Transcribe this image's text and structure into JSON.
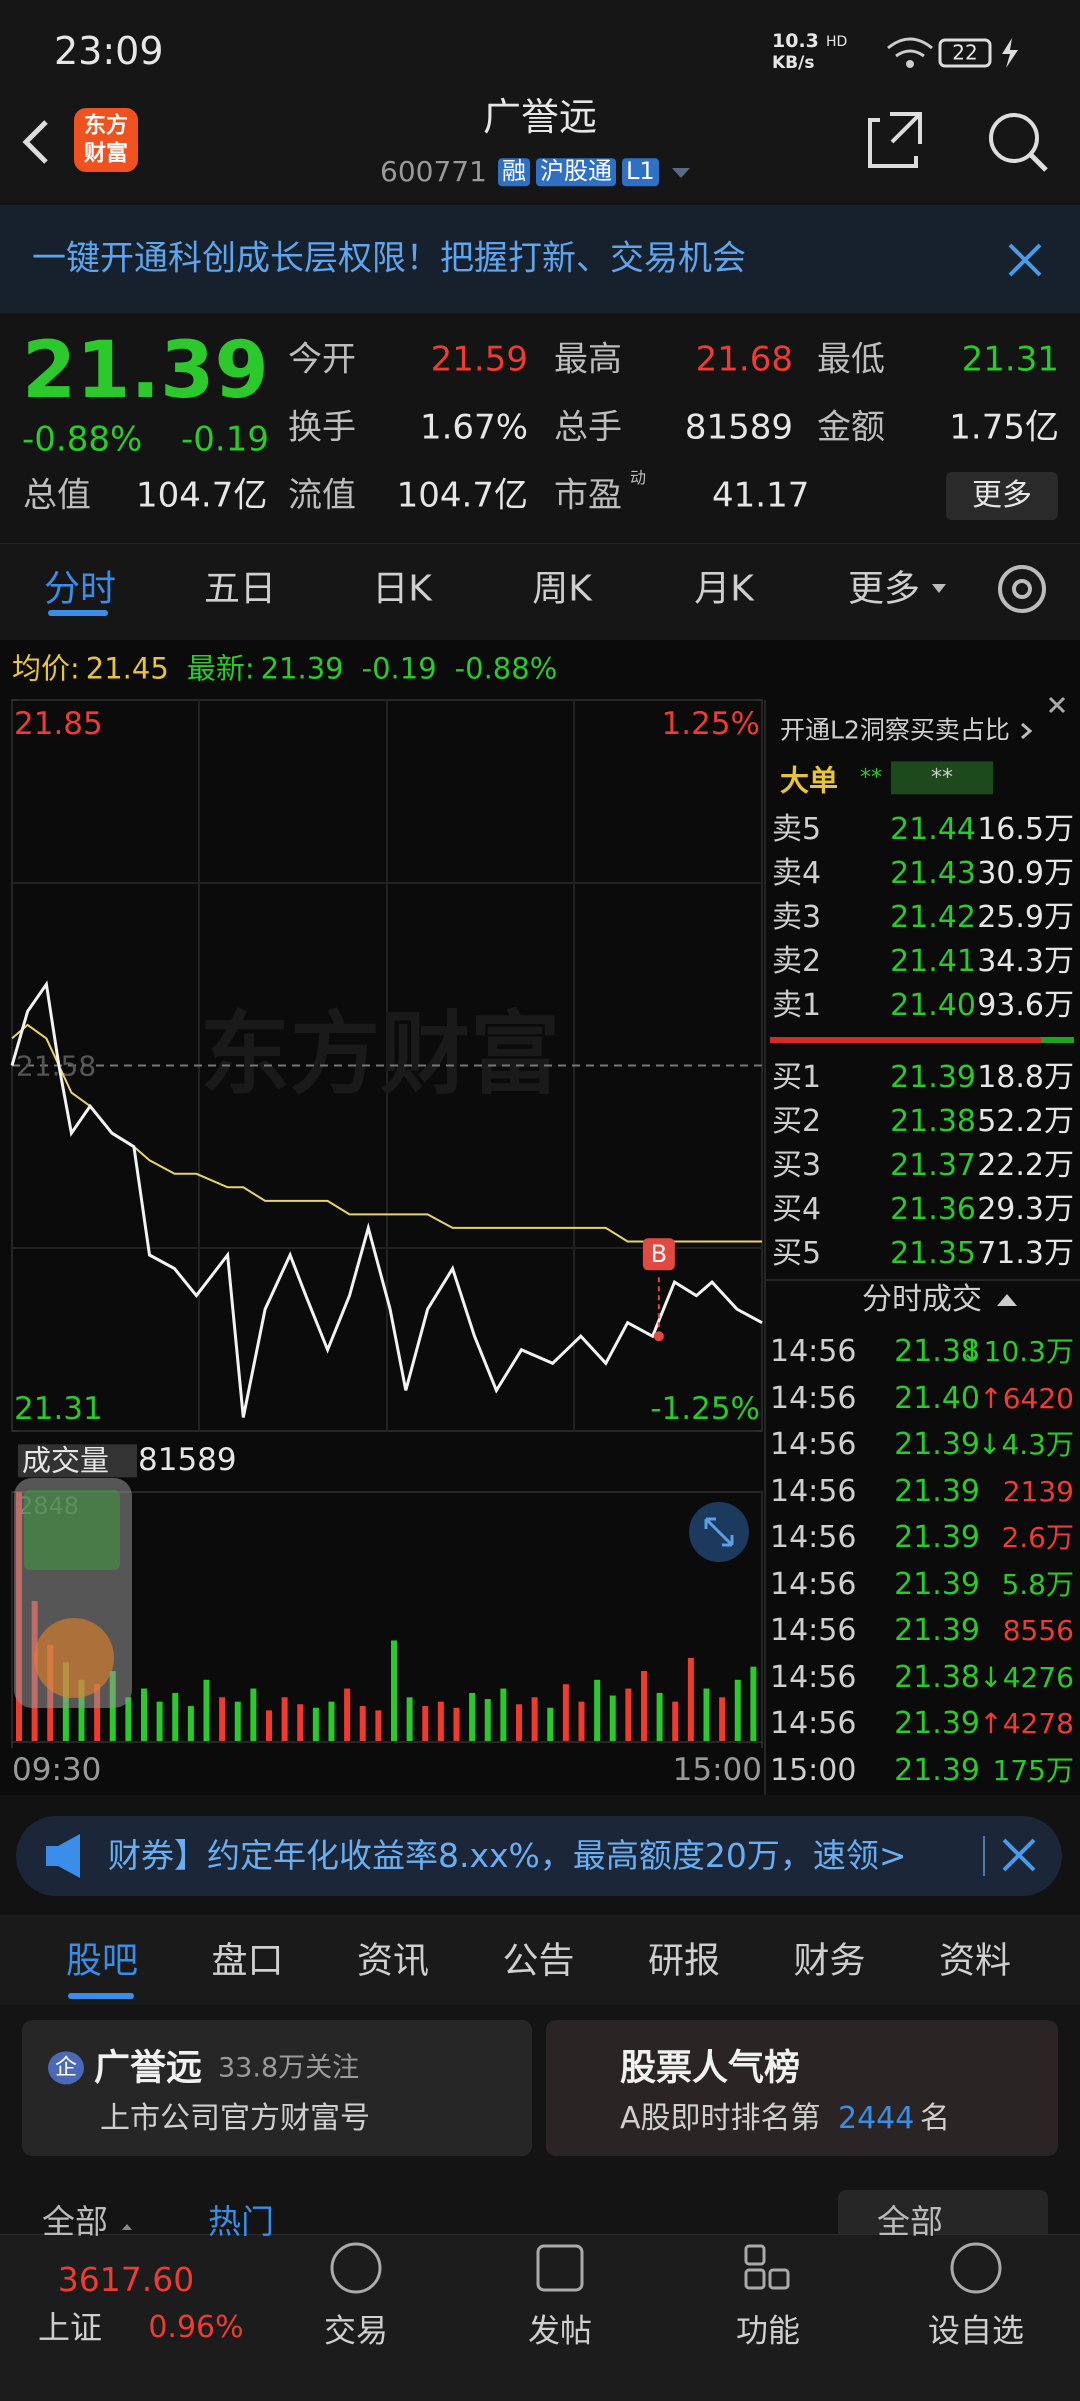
{
  "status": {
    "time": "23:09",
    "speed": "10.3",
    "speed_unit": "KB/s",
    "network": "HD",
    "battery": "22"
  },
  "header": {
    "logo": [
      "东方",
      "财富"
    ],
    "name": "广誉远",
    "code": "600771",
    "tags": [
      "融",
      "沪股通",
      "L1"
    ]
  },
  "banner": {
    "text": "一键开通科创成长层权限！把握打新、交易机会"
  },
  "quote": {
    "price": "21.39",
    "change_pct": "-0.88%",
    "change": "-0.19",
    "stats": [
      {
        "label": "今开",
        "value": "21.59",
        "color": "#ee3b33"
      },
      {
        "label": "最高",
        "value": "21.68",
        "color": "#ee3b33"
      },
      {
        "label": "最低",
        "value": "21.31",
        "color": "#2bc92b"
      },
      {
        "label": "换手",
        "value": "1.67%",
        "color": "#e6e6e6"
      },
      {
        "label": "总手",
        "value": "81589",
        "color": "#e6e6e6"
      },
      {
        "label": "金额",
        "value": "1.75亿",
        "color": "#e6e6e6"
      }
    ],
    "total_label": "总值",
    "total_value": "104.7亿",
    "float_label": "流值",
    "float_value": "104.7亿",
    "pe_label": "市盈",
    "pe_sup": "动",
    "pe_value": "41.17",
    "more": "更多"
  },
  "tabs": [
    "分时",
    "五日",
    "日K",
    "周K",
    "月K",
    "更多"
  ],
  "info": {
    "avg_label": "均价:",
    "avg": "21.45",
    "last_label": "最新:",
    "last": "21.39",
    "change": "-0.19",
    "change_pct": "-0.88%"
  },
  "chart_data": {
    "type": "line",
    "watermark": "东方财富",
    "x": [
      0,
      5,
      11,
      15,
      19,
      25,
      32,
      39,
      44,
      52,
      59,
      69,
      74,
      81,
      89,
      94,
      101,
      108,
      114,
      121,
      126,
      133,
      141,
      148,
      155,
      163,
      173,
      182,
      190,
      197,
      205,
      212,
      219,
      224,
      232,
      240
    ],
    "xlim": [
      0,
      240
    ],
    "xticks": [
      {
        "value": 0,
        "label": "09:30"
      },
      {
        "value": 240,
        "label": "15:00"
      }
    ],
    "ylim": [
      21.31,
      21.85
    ],
    "yticks": [
      21.85,
      21.31
    ],
    "y2lim": [
      -1.25,
      1.25
    ],
    "y2ticks": [
      {
        "value": 1.25,
        "label": "1.25%"
      },
      {
        "value": -1.25,
        "label": "-1.25%"
      }
    ],
    "ref_line": {
      "value": 21.58,
      "label": "21.58"
    },
    "series": [
      {
        "name": "最新",
        "color": "#f2f2f2",
        "values": [
          21.58,
          21.62,
          21.64,
          21.58,
          21.53,
          21.55,
          21.53,
          21.52,
          21.44,
          21.43,
          21.41,
          21.44,
          21.32,
          21.4,
          21.44,
          21.41,
          21.37,
          21.41,
          21.46,
          21.4,
          21.34,
          21.4,
          21.43,
          21.38,
          21.34,
          21.37,
          21.36,
          21.38,
          21.36,
          21.39,
          21.38,
          21.42,
          21.41,
          21.42,
          21.4,
          21.39
        ]
      },
      {
        "name": "均价",
        "color": "#e8d36a",
        "values": [
          21.6,
          21.61,
          21.6,
          21.58,
          21.56,
          21.55,
          21.53,
          21.52,
          21.51,
          21.5,
          21.5,
          21.49,
          21.49,
          21.48,
          21.48,
          21.48,
          21.48,
          21.47,
          21.47,
          21.47,
          21.47,
          21.47,
          21.46,
          21.46,
          21.46,
          21.46,
          21.46,
          21.46,
          21.46,
          21.45,
          21.45,
          21.45,
          21.45,
          21.45,
          21.45,
          21.45
        ]
      }
    ],
    "marker": {
      "label": "B",
      "x": 207,
      "value": 21.38,
      "color": "#e04a40"
    },
    "volume": {
      "title": "成交量",
      "total": "81589",
      "up_color": "#f03a2e",
      "down_color": "#2bc92b",
      "ylim": [
        0,
        2848
      ],
      "yticks": [
        2848
      ],
      "x": [
        0,
        5,
        10,
        15,
        20,
        25,
        30,
        35,
        40,
        45,
        50,
        55,
        60,
        65,
        70,
        75,
        80,
        85,
        90,
        95,
        100,
        105,
        110,
        115,
        120,
        125,
        130,
        135,
        140,
        145,
        150,
        155,
        160,
        165,
        170,
        175,
        180,
        185,
        190,
        195,
        200,
        205,
        210,
        215,
        220,
        225,
        230,
        235
      ],
      "values": [
        2848,
        1600,
        1100,
        900,
        700,
        650,
        800,
        500,
        600,
        450,
        550,
        400,
        700,
        500,
        450,
        600,
        350,
        500,
        420,
        380,
        450,
        600,
        400,
        350,
        1150,
        500,
        400,
        450,
        380,
        550,
        480,
        600,
        420,
        500,
        380,
        650,
        450,
        700,
        520,
        600,
        800,
        550,
        450,
        950,
        600,
        500,
        700,
        850
      ]
    }
  },
  "orderbook": {
    "title": "开通L2洞察买卖占比",
    "big_label": "大单",
    "big_a": "**",
    "big_b": "**",
    "asks": [
      [
        "卖5",
        "21.44",
        "16.5万"
      ],
      [
        "卖4",
        "21.43",
        "30.9万"
      ],
      [
        "卖3",
        "21.42",
        "25.9万"
      ],
      [
        "卖2",
        "21.41",
        "34.3万"
      ],
      [
        "卖1",
        "21.40",
        "93.6万"
      ]
    ],
    "bids": [
      [
        "买1",
        "21.39",
        "18.8万"
      ],
      [
        "买2",
        "21.38",
        "52.2万"
      ],
      [
        "买3",
        "21.37",
        "22.2万"
      ],
      [
        "买4",
        "21.36",
        "29.3万"
      ],
      [
        "买5",
        "21.35",
        "71.3万"
      ]
    ]
  },
  "trades": {
    "title": "分时成交",
    "rows": [
      {
        "time": "14:56",
        "price": "21.38",
        "volume": "↓10.3万",
        "color": "#2bc92b"
      },
      {
        "time": "14:56",
        "price": "21.40",
        "volume": "↑6420",
        "color": "#ee3b33"
      },
      {
        "time": "14:56",
        "price": "21.39",
        "volume": "↓4.3万",
        "color": "#2bc92b"
      },
      {
        "time": "14:56",
        "price": "21.39",
        "volume": "2139",
        "color": "#ee3b33"
      },
      {
        "time": "14:56",
        "price": "21.39",
        "volume": "2.6万",
        "color": "#ee3b33"
      },
      {
        "time": "14:56",
        "price": "21.39",
        "volume": "5.8万",
        "color": "#2bc92b"
      },
      {
        "time": "14:56",
        "price": "21.39",
        "volume": "8556",
        "color": "#ee3b33"
      },
      {
        "time": "14:56",
        "price": "21.38",
        "volume": "↓4276",
        "color": "#2bc92b"
      },
      {
        "time": "14:56",
        "price": "21.39",
        "volume": "↑4278",
        "color": "#ee3b33"
      },
      {
        "time": "15:00",
        "price": "21.39",
        "volume": "175万",
        "color": "#2bc92b"
      }
    ]
  },
  "ad": {
    "text": "财券】约定年化收益率8.xx%，最高额度20万，速领>"
  },
  "section_tabs": [
    "股吧",
    "盘口",
    "资讯",
    "公告",
    "研报",
    "财务",
    "资料"
  ],
  "cards": [
    {
      "badge": "企",
      "title": "广誉远",
      "meta": "33.8万关注",
      "sub": "上市公司官方财富号"
    },
    {
      "title": "股票人气榜",
      "sub_prefix": "A股即时排名第",
      "rank": "2444",
      "sub_suffix": "名"
    }
  ],
  "filters": {
    "left": [
      "全部",
      "热门"
    ],
    "right": "全部"
  },
  "bottom_nav": {
    "index_value": "3617.60",
    "index_name": "上证",
    "index_change": "0.96%",
    "items": [
      "交易",
      "发帖",
      "功能",
      "设自选"
    ]
  }
}
